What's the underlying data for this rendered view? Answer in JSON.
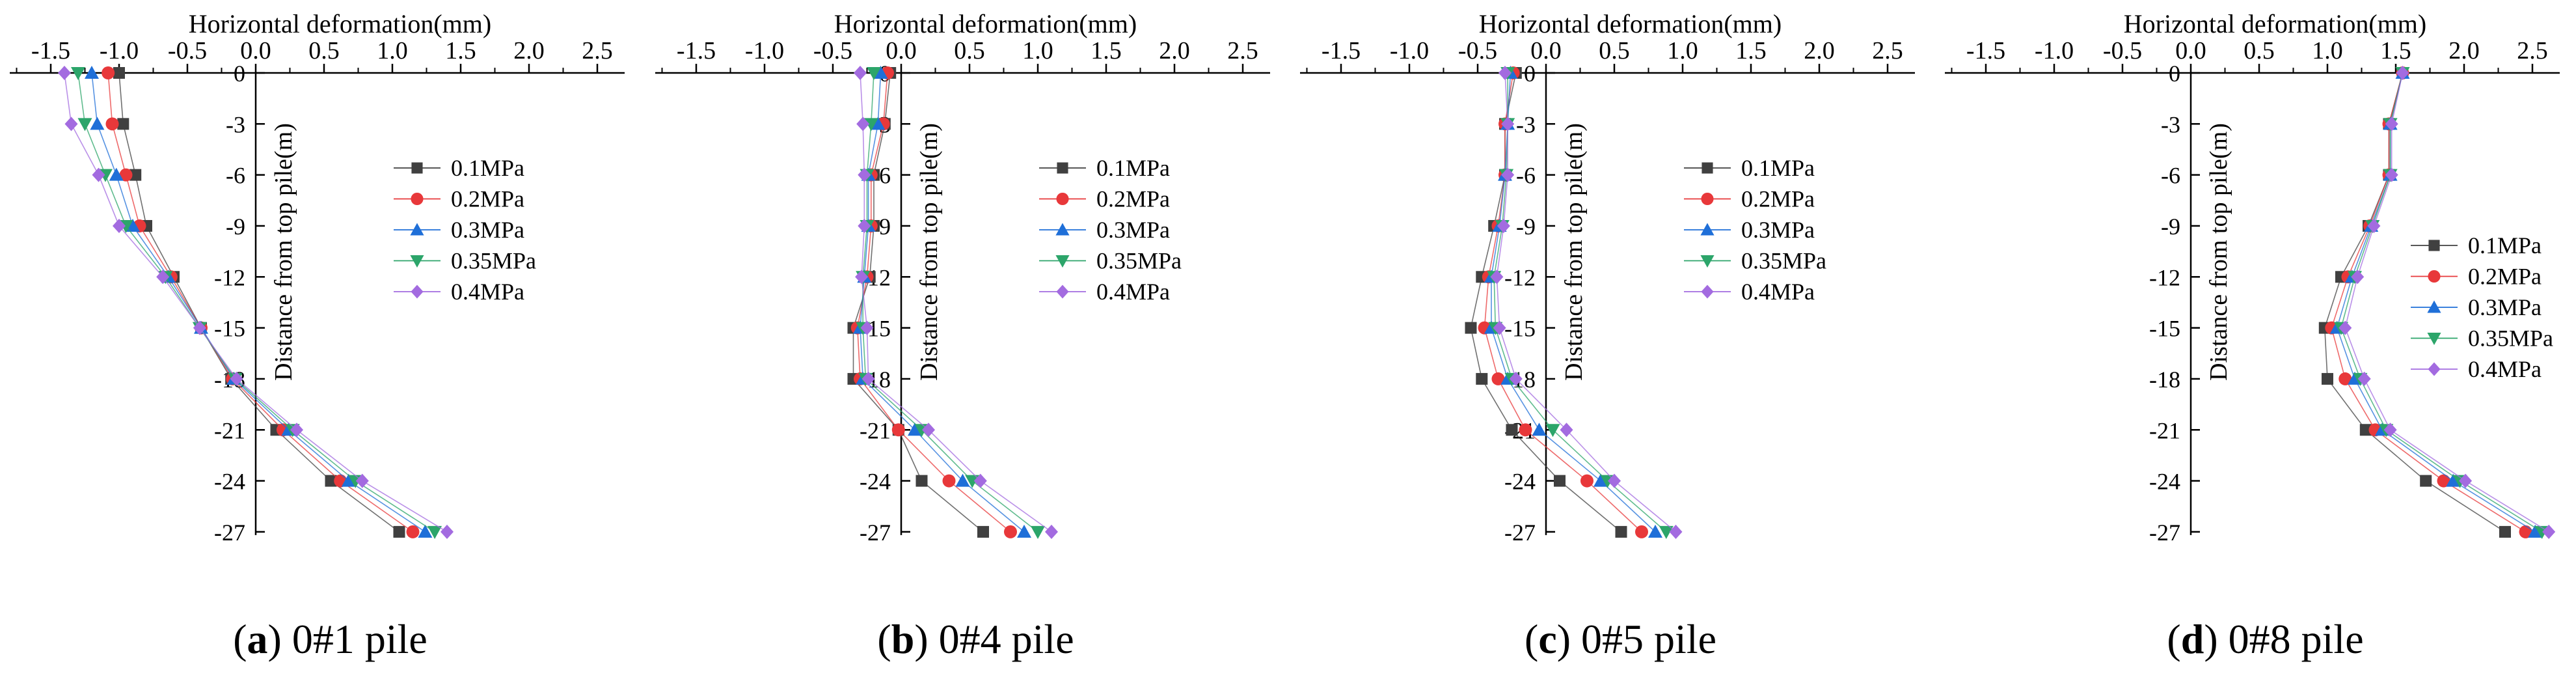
{
  "figure": {
    "panels": [
      "(a) 0#1 pile",
      "(b) 0#4 pile",
      "(c) 0#5 pile",
      "(d) 0#8 pile"
    ]
  },
  "chart_data": [
    {
      "type": "line",
      "panel_letter": "a",
      "caption": "0#1 pile",
      "title": "",
      "xlabel": "Horizontal deformation(mm)",
      "ylabel": "Distance from top pile(m)",
      "xlim": [
        -1.8,
        2.7
      ],
      "ylim": [
        -28,
        0
      ],
      "xticks": [
        "-1.5",
        "-1.0",
        "-0.5",
        "0.0",
        "0.5",
        "1.0",
        "1.5",
        "2.0",
        "2.5"
      ],
      "yticks": [
        "0",
        "-3",
        "-6",
        "-9",
        "-12",
        "-15",
        "-18",
        "-21",
        "-24",
        "-27"
      ],
      "y": [
        0,
        -3,
        -6,
        -9,
        -12,
        -15,
        -18,
        -21,
        -24,
        -27
      ],
      "legend": "right-middle",
      "series": [
        {
          "name": "0.1MPa",
          "marker": "square",
          "color": "#404040",
          "x": [
            -1.0,
            -0.97,
            -0.88,
            -0.8,
            -0.6,
            -0.4,
            -0.18,
            0.15,
            0.55,
            1.05
          ]
        },
        {
          "name": "0.2MPa",
          "marker": "circle",
          "color": "#e8383a",
          "x": [
            -1.08,
            -1.05,
            -0.95,
            -0.85,
            -0.62,
            -0.4,
            -0.17,
            0.2,
            0.62,
            1.15
          ]
        },
        {
          "name": "0.3MPa",
          "marker": "triangle",
          "color": "#1f6fd8",
          "x": [
            -1.2,
            -1.16,
            -1.02,
            -0.9,
            -0.64,
            -0.4,
            -0.16,
            0.24,
            0.68,
            1.24
          ]
        },
        {
          "name": "0.35MPa",
          "marker": "tri-down",
          "color": "#2ca56a",
          "x": [
            -1.3,
            -1.25,
            -1.1,
            -0.95,
            -0.66,
            -0.41,
            -0.15,
            0.27,
            0.73,
            1.31
          ]
        },
        {
          "name": "0.4MPa",
          "marker": "diamond",
          "color": "#a36be0",
          "x": [
            -1.4,
            -1.35,
            -1.15,
            -1.0,
            -0.68,
            -0.41,
            -0.14,
            0.3,
            0.78,
            1.4
          ]
        }
      ]
    },
    {
      "type": "line",
      "panel_letter": "b",
      "caption": "0#4 pile",
      "title": "",
      "xlabel": "Horizontal deformation(mm)",
      "ylabel": "Distance from top pile(m)",
      "xlim": [
        -1.8,
        2.7
      ],
      "ylim": [
        -28,
        0
      ],
      "xticks": [
        "-1.5",
        "-1.0",
        "-0.5",
        "0.0",
        "0.5",
        "1.0",
        "1.5",
        "2.0",
        "2.5"
      ],
      "yticks": [
        "0",
        "-3",
        "-6",
        "-9",
        "-12",
        "-15",
        "-18",
        "-21",
        "-24",
        "-27"
      ],
      "y": [
        0,
        -3,
        -6,
        -9,
        -12,
        -15,
        -18,
        -21,
        -24,
        -27
      ],
      "legend": "right-middle",
      "series": [
        {
          "name": "0.1MPa",
          "marker": "square",
          "color": "#404040",
          "x": [
            -0.08,
            -0.12,
            -0.2,
            -0.2,
            -0.23,
            -0.35,
            -0.35,
            -0.02,
            0.15,
            0.6
          ]
        },
        {
          "name": "0.2MPa",
          "marker": "circle",
          "color": "#e8383a",
          "x": [
            -0.1,
            -0.13,
            -0.22,
            -0.22,
            -0.25,
            -0.32,
            -0.3,
            -0.02,
            0.35,
            0.8
          ]
        },
        {
          "name": "0.3MPa",
          "marker": "triangle",
          "color": "#1f6fd8",
          "x": [
            -0.15,
            -0.17,
            -0.24,
            -0.24,
            -0.27,
            -0.3,
            -0.28,
            0.1,
            0.45,
            0.9
          ]
        },
        {
          "name": "0.35MPa",
          "marker": "tri-down",
          "color": "#2ca56a",
          "x": [
            -0.2,
            -0.22,
            -0.25,
            -0.25,
            -0.28,
            -0.28,
            -0.26,
            0.15,
            0.52,
            1.0
          ]
        },
        {
          "name": "0.4MPa",
          "marker": "diamond",
          "color": "#a36be0",
          "x": [
            -0.3,
            -0.28,
            -0.27,
            -0.27,
            -0.29,
            -0.25,
            -0.24,
            0.2,
            0.58,
            1.1
          ]
        }
      ]
    },
    {
      "type": "line",
      "panel_letter": "c",
      "caption": "0#5 pile",
      "title": "",
      "xlabel": "Horizontal deformation(mm)",
      "ylabel": "Distance from top pile(m)",
      "xlim": [
        -1.8,
        2.7
      ],
      "ylim": [
        -28,
        0
      ],
      "xticks": [
        "-1.5",
        "-1.0",
        "-0.5",
        "0.0",
        "0.5",
        "1.0",
        "1.5",
        "2.0",
        "2.5"
      ],
      "yticks": [
        "0",
        "-3",
        "-6",
        "-9",
        "-12",
        "-15",
        "-18",
        "-21",
        "-24",
        "-27"
      ],
      "y": [
        0,
        -3,
        -6,
        -9,
        -12,
        -15,
        -18,
        -21,
        -24,
        -27
      ],
      "legend": "right-middle",
      "series": [
        {
          "name": "0.1MPa",
          "marker": "square",
          "color": "#404040",
          "x": [
            -0.22,
            -0.3,
            -0.3,
            -0.38,
            -0.47,
            -0.55,
            -0.47,
            -0.25,
            0.1,
            0.55
          ]
        },
        {
          "name": "0.2MPa",
          "marker": "circle",
          "color": "#e8383a",
          "x": [
            -0.24,
            -0.3,
            -0.3,
            -0.35,
            -0.42,
            -0.45,
            -0.35,
            -0.15,
            0.3,
            0.7
          ]
        },
        {
          "name": "0.3MPa",
          "marker": "triangle",
          "color": "#1f6fd8",
          "x": [
            -0.26,
            -0.28,
            -0.3,
            -0.34,
            -0.4,
            -0.4,
            -0.28,
            -0.05,
            0.4,
            0.8
          ]
        },
        {
          "name": "0.35MPa",
          "marker": "tri-down",
          "color": "#2ca56a",
          "x": [
            -0.28,
            -0.28,
            -0.29,
            -0.32,
            -0.38,
            -0.37,
            -0.25,
            0.05,
            0.45,
            0.88
          ]
        },
        {
          "name": "0.4MPa",
          "marker": "diamond",
          "color": "#a36be0",
          "x": [
            -0.3,
            -0.28,
            -0.28,
            -0.31,
            -0.36,
            -0.34,
            -0.22,
            0.15,
            0.5,
            0.95
          ]
        }
      ]
    },
    {
      "type": "line",
      "panel_letter": "d",
      "caption": "0#8 pile",
      "title": "",
      "xlabel": "Horizontal deformation(mm)",
      "ylabel": "Distance from top pile(m)",
      "xlim": [
        -1.8,
        2.7
      ],
      "ylim": [
        -28,
        0
      ],
      "xticks": [
        "-1.5",
        "-1.0",
        "-0.5",
        "0.0",
        "0.5",
        "1.0",
        "1.5",
        "2.0",
        "2.5"
      ],
      "yticks": [
        "0",
        "-3",
        "-6",
        "-9",
        "-12",
        "-15",
        "-18",
        "-21",
        "-24",
        "-27"
      ],
      "y": [
        0,
        -3,
        -6,
        -9,
        -12,
        -15,
        -18,
        -21,
        -24,
        -27
      ],
      "legend": "right-middle",
      "series": [
        {
          "name": "0.1MPa",
          "marker": "square",
          "color": "#404040",
          "x": [
            1.55,
            1.45,
            1.45,
            1.3,
            1.1,
            0.98,
            1.0,
            1.28,
            1.72,
            2.3
          ]
        },
        {
          "name": "0.2MPa",
          "marker": "circle",
          "color": "#e8383a",
          "x": [
            1.55,
            1.45,
            1.45,
            1.31,
            1.15,
            1.03,
            1.13,
            1.35,
            1.85,
            2.45
          ]
        },
        {
          "name": "0.3MPa",
          "marker": "triangle",
          "color": "#1f6fd8",
          "x": [
            1.55,
            1.46,
            1.46,
            1.32,
            1.18,
            1.07,
            1.2,
            1.4,
            1.92,
            2.52
          ]
        },
        {
          "name": "0.35MPa",
          "marker": "tri-down",
          "color": "#2ca56a",
          "x": [
            1.55,
            1.46,
            1.46,
            1.33,
            1.2,
            1.1,
            1.24,
            1.43,
            1.97,
            2.57
          ]
        },
        {
          "name": "0.4MPa",
          "marker": "diamond",
          "color": "#a36be0",
          "x": [
            1.55,
            1.47,
            1.47,
            1.34,
            1.22,
            1.13,
            1.27,
            1.46,
            2.01,
            2.62
          ]
        }
      ]
    }
  ]
}
